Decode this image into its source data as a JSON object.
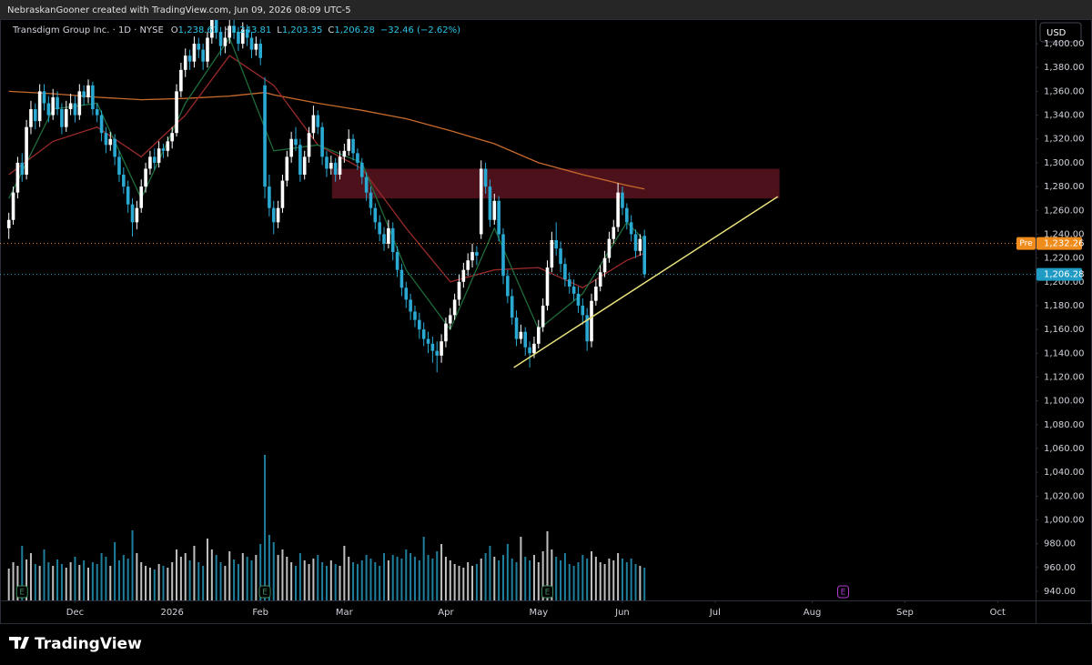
{
  "header": {
    "attribution": "NebraskanGooner created with TradingView.com, Jun 09, 2026 08:09 UTC-5"
  },
  "footer": {
    "brand": "TradingView"
  },
  "chart_data": {
    "type": "candlestick",
    "currency": "USD",
    "legend": {
      "name": "Transdigm Group Inc. · 1D · NYSE",
      "ohlc": [
        {
          "label": "O",
          "value": "1,238.61"
        },
        {
          "label": "H",
          "value": "1,243.81"
        },
        {
          "label": "L",
          "value": "1,203.35"
        },
        {
          "label": "C",
          "value": "1,206.28"
        }
      ],
      "change": "−32.46 (−2.62%)"
    },
    "up_color": "#ffffff",
    "down_color": "#2aa9d2",
    "xlim": [
      -2,
      232.6
    ],
    "xticks": [
      {
        "value": 15,
        "label": "Dec"
      },
      {
        "value": 37,
        "label": "2026"
      },
      {
        "value": 57,
        "label": "Feb"
      },
      {
        "value": 76,
        "label": "Mar"
      },
      {
        "value": 99,
        "label": "Apr"
      },
      {
        "value": 120,
        "label": "May"
      },
      {
        "value": 139,
        "label": "Jun"
      },
      {
        "value": 160,
        "label": "Jul"
      },
      {
        "value": 182,
        "label": "Aug"
      },
      {
        "value": 203,
        "label": "Sep"
      },
      {
        "value": 224,
        "label": "Oct"
      }
    ],
    "ylim": [
      932.4,
      1419.9
    ],
    "yticks": [
      {
        "value": 940,
        "label": "940.00"
      },
      {
        "value": 960,
        "label": "960.00"
      },
      {
        "value": 980,
        "label": "980.00"
      },
      {
        "value": 1000,
        "label": "1,000.00"
      },
      {
        "value": 1020,
        "label": "1,020.00"
      },
      {
        "value": 1040,
        "label": "1,040.00"
      },
      {
        "value": 1060,
        "label": "1,060.00"
      },
      {
        "value": 1080,
        "label": "1,080.00"
      },
      {
        "value": 1100,
        "label": "1,100.00"
      },
      {
        "value": 1120,
        "label": "1,120.00"
      },
      {
        "value": 1140,
        "label": "1,140.00"
      },
      {
        "value": 1160,
        "label": "1,160.00"
      },
      {
        "value": 1180,
        "label": "1,180.00"
      },
      {
        "value": 1200,
        "label": "1,200.00"
      },
      {
        "value": 1220,
        "label": "1,220.00"
      },
      {
        "value": 1240,
        "label": "1,240.00"
      },
      {
        "value": 1260,
        "label": "1,260.00"
      },
      {
        "value": 1280,
        "label": "1,280.00"
      },
      {
        "value": 1300,
        "label": "1,300.00"
      },
      {
        "value": 1320,
        "label": "1,320.00"
      },
      {
        "value": 1340,
        "label": "1,340.00"
      },
      {
        "value": 1360,
        "label": "1,360.00"
      },
      {
        "value": 1380,
        "label": "1,380.00"
      },
      {
        "value": 1400,
        "label": "1,400.00"
      }
    ],
    "x": [
      0,
      1,
      2,
      3,
      4,
      5,
      6,
      7,
      8,
      9,
      10,
      11,
      12,
      13,
      14,
      15,
      16,
      17,
      18,
      19,
      20,
      21,
      22,
      23,
      24,
      25,
      26,
      27,
      28,
      29,
      30,
      31,
      32,
      33,
      34,
      35,
      36,
      37,
      38,
      39,
      40,
      41,
      42,
      43,
      44,
      45,
      46,
      47,
      48,
      49,
      50,
      51,
      52,
      53,
      54,
      55,
      56,
      57,
      58,
      59,
      60,
      61,
      62,
      63,
      64,
      65,
      66,
      67,
      68,
      69,
      70,
      71,
      72,
      73,
      74,
      75,
      76,
      77,
      78,
      79,
      80,
      81,
      82,
      83,
      84,
      85,
      86,
      87,
      88,
      89,
      90,
      91,
      92,
      93,
      94,
      95,
      96,
      97,
      98,
      99,
      100,
      101,
      102,
      103,
      104,
      105,
      106,
      107,
      108,
      109,
      110,
      111,
      112,
      113,
      114,
      115,
      116,
      117,
      118,
      119,
      120,
      121,
      122,
      123,
      124,
      125,
      126,
      127,
      128,
      129,
      130,
      131,
      132,
      133,
      134,
      135,
      136,
      137,
      138,
      139,
      140,
      141,
      142,
      143,
      144
    ],
    "candles": [
      [
        1245,
        1258,
        1236,
        1252
      ],
      [
        1252,
        1280,
        1248,
        1275
      ],
      [
        1275,
        1305,
        1270,
        1300
      ],
      [
        1300,
        1308,
        1284,
        1290
      ],
      [
        1290,
        1336,
        1286,
        1330
      ],
      [
        1330,
        1352,
        1324,
        1345
      ],
      [
        1345,
        1350,
        1328,
        1335
      ],
      [
        1335,
        1366,
        1330,
        1360
      ],
      [
        1360,
        1366,
        1344,
        1350
      ],
      [
        1350,
        1356,
        1334,
        1340
      ],
      [
        1340,
        1362,
        1336,
        1355
      ],
      [
        1355,
        1360,
        1340,
        1345
      ],
      [
        1345,
        1350,
        1324,
        1330
      ],
      [
        1330,
        1352,
        1326,
        1345
      ],
      [
        1345,
        1358,
        1340,
        1350
      ],
      [
        1350,
        1356,
        1334,
        1340
      ],
      [
        1340,
        1366,
        1336,
        1360
      ],
      [
        1360,
        1365,
        1348,
        1355
      ],
      [
        1355,
        1370,
        1350,
        1365
      ],
      [
        1365,
        1368,
        1340,
        1345
      ],
      [
        1345,
        1350,
        1334,
        1340
      ],
      [
        1340,
        1344,
        1318,
        1325
      ],
      [
        1325,
        1330,
        1308,
        1315
      ],
      [
        1315,
        1326,
        1310,
        1320
      ],
      [
        1320,
        1324,
        1298,
        1305
      ],
      [
        1305,
        1310,
        1284,
        1290
      ],
      [
        1290,
        1296,
        1274,
        1280
      ],
      [
        1280,
        1285,
        1258,
        1265
      ],
      [
        1265,
        1270,
        1238,
        1250
      ],
      [
        1250,
        1268,
        1244,
        1262
      ],
      [
        1262,
        1286,
        1258,
        1280
      ],
      [
        1280,
        1300,
        1275,
        1295
      ],
      [
        1295,
        1310,
        1290,
        1305
      ],
      [
        1305,
        1312,
        1294,
        1300
      ],
      [
        1300,
        1318,
        1296,
        1312
      ],
      [
        1312,
        1316,
        1304,
        1310
      ],
      [
        1310,
        1322,
        1305,
        1318
      ],
      [
        1318,
        1330,
        1312,
        1325
      ],
      [
        1325,
        1366,
        1322,
        1360
      ],
      [
        1360,
        1384,
        1355,
        1378
      ],
      [
        1378,
        1396,
        1372,
        1390
      ],
      [
        1390,
        1395,
        1378,
        1385
      ],
      [
        1385,
        1406,
        1380,
        1400
      ],
      [
        1400,
        1405,
        1388,
        1395
      ],
      [
        1395,
        1400,
        1378,
        1385
      ],
      [
        1385,
        1410,
        1380,
        1405
      ],
      [
        1405,
        1428,
        1400,
        1420
      ],
      [
        1420,
        1425,
        1404,
        1410
      ],
      [
        1410,
        1414,
        1390,
        1398
      ],
      [
        1398,
        1410,
        1392,
        1405
      ],
      [
        1405,
        1420,
        1400,
        1415
      ],
      [
        1415,
        1420,
        1404,
        1410
      ],
      [
        1410,
        1414,
        1394,
        1400
      ],
      [
        1400,
        1418,
        1396,
        1412
      ],
      [
        1412,
        1416,
        1398,
        1405
      ],
      [
        1405,
        1410,
        1388,
        1395
      ],
      [
        1395,
        1406,
        1390,
        1400
      ],
      [
        1400,
        1404,
        1382,
        1388
      ],
      [
        1365,
        1372,
        1270,
        1280
      ],
      [
        1280,
        1290,
        1255,
        1262
      ],
      [
        1262,
        1268,
        1240,
        1250
      ],
      [
        1250,
        1268,
        1245,
        1262
      ],
      [
        1262,
        1290,
        1258,
        1285
      ],
      [
        1285,
        1310,
        1280,
        1305
      ],
      [
        1305,
        1326,
        1300,
        1320
      ],
      [
        1320,
        1330,
        1310,
        1315
      ],
      [
        1315,
        1320,
        1284,
        1290
      ],
      [
        1290,
        1310,
        1286,
        1305
      ],
      [
        1305,
        1330,
        1300,
        1325
      ],
      [
        1325,
        1348,
        1320,
        1340
      ],
      [
        1340,
        1344,
        1324,
        1330
      ],
      [
        1330,
        1334,
        1298,
        1305
      ],
      [
        1305,
        1310,
        1288,
        1295
      ],
      [
        1295,
        1306,
        1290,
        1300
      ],
      [
        1300,
        1304,
        1284,
        1290
      ],
      [
        1290,
        1310,
        1286,
        1305
      ],
      [
        1305,
        1316,
        1300,
        1310
      ],
      [
        1310,
        1328,
        1306,
        1320
      ],
      [
        1320,
        1324,
        1302,
        1308
      ],
      [
        1308,
        1312,
        1294,
        1300
      ],
      [
        1300,
        1304,
        1282,
        1288
      ],
      [
        1288,
        1292,
        1268,
        1275
      ],
      [
        1275,
        1280,
        1256,
        1262
      ],
      [
        1262,
        1266,
        1244,
        1250
      ],
      [
        1250,
        1256,
        1234,
        1240
      ],
      [
        1240,
        1246,
        1226,
        1232
      ],
      [
        1232,
        1252,
        1228,
        1245
      ],
      [
        1245,
        1250,
        1218,
        1225
      ],
      [
        1225,
        1230,
        1204,
        1210
      ],
      [
        1210,
        1215,
        1188,
        1195
      ],
      [
        1195,
        1200,
        1178,
        1185
      ],
      [
        1185,
        1190,
        1168,
        1175
      ],
      [
        1175,
        1180,
        1162,
        1168
      ],
      [
        1168,
        1174,
        1152,
        1160
      ],
      [
        1160,
        1166,
        1146,
        1152
      ],
      [
        1152,
        1158,
        1140,
        1148
      ],
      [
        1148,
        1154,
        1132,
        1142
      ],
      [
        1142,
        1150,
        1124,
        1138
      ],
      [
        1138,
        1156,
        1132,
        1150
      ],
      [
        1150,
        1170,
        1145,
        1165
      ],
      [
        1165,
        1178,
        1160,
        1172
      ],
      [
        1172,
        1190,
        1168,
        1185
      ],
      [
        1185,
        1206,
        1180,
        1200
      ],
      [
        1200,
        1216,
        1195,
        1210
      ],
      [
        1210,
        1224,
        1205,
        1218
      ],
      [
        1218,
        1232,
        1212,
        1225
      ],
      [
        1225,
        1230,
        1214,
        1222
      ],
      [
        1240,
        1302,
        1236,
        1295
      ],
      [
        1295,
        1300,
        1274,
        1280
      ],
      [
        1280,
        1286,
        1246,
        1252
      ],
      [
        1252,
        1274,
        1248,
        1268
      ],
      [
        1268,
        1272,
        1234,
        1240
      ],
      [
        1240,
        1245,
        1198,
        1205
      ],
      [
        1205,
        1210,
        1182,
        1188
      ],
      [
        1188,
        1194,
        1164,
        1170
      ],
      [
        1170,
        1176,
        1146,
        1152
      ],
      [
        1152,
        1164,
        1148,
        1158
      ],
      [
        1158,
        1162,
        1138,
        1145
      ],
      [
        1145,
        1150,
        1128,
        1140
      ],
      [
        1140,
        1154,
        1136,
        1148
      ],
      [
        1148,
        1168,
        1144,
        1162
      ],
      [
        1162,
        1186,
        1158,
        1180
      ],
      [
        1180,
        1218,
        1176,
        1212
      ],
      [
        1212,
        1242,
        1208,
        1235
      ],
      [
        1235,
        1250,
        1222,
        1228
      ],
      [
        1228,
        1234,
        1208,
        1215
      ],
      [
        1215,
        1220,
        1196,
        1202
      ],
      [
        1202,
        1208,
        1190,
        1196
      ],
      [
        1196,
        1202,
        1184,
        1190
      ],
      [
        1190,
        1196,
        1174,
        1180
      ],
      [
        1180,
        1186,
        1164,
        1172
      ],
      [
        1172,
        1178,
        1142,
        1150
      ],
      [
        1150,
        1190,
        1145,
        1184
      ],
      [
        1184,
        1202,
        1180,
        1196
      ],
      [
        1196,
        1214,
        1192,
        1208
      ],
      [
        1208,
        1226,
        1204,
        1220
      ],
      [
        1220,
        1242,
        1216,
        1236
      ],
      [
        1236,
        1252,
        1232,
        1246
      ],
      [
        1246,
        1283,
        1242,
        1275
      ],
      [
        1275,
        1280,
        1256,
        1262
      ],
      [
        1262,
        1266,
        1244,
        1250
      ],
      [
        1250,
        1256,
        1234,
        1240
      ],
      [
        1240,
        1244,
        1220,
        1226
      ],
      [
        1226,
        1240,
        1222,
        1236
      ],
      [
        1238.61,
        1243.81,
        1203.35,
        1206.28
      ]
    ],
    "volume_lim": [
      0,
      1600000
    ],
    "volume": [
      350000,
      420000,
      380000,
      600000,
      450000,
      520000,
      400000,
      380000,
      560000,
      420000,
      380000,
      450000,
      400000,
      360000,
      420000,
      480000,
      390000,
      440000,
      360000,
      420000,
      400000,
      520000,
      480000,
      380000,
      640000,
      440000,
      500000,
      460000,
      770000,
      520000,
      420000,
      380000,
      360000,
      340000,
      400000,
      380000,
      360000,
      420000,
      560000,
      480000,
      520000,
      440000,
      600000,
      420000,
      380000,
      680000,
      560000,
      500000,
      420000,
      380000,
      540000,
      450000,
      400000,
      520000,
      480000,
      440000,
      500000,
      620000,
      1600000,
      720000,
      640000,
      500000,
      560000,
      480000,
      420000,
      380000,
      520000,
      440000,
      400000,
      460000,
      500000,
      420000,
      380000,
      440000,
      400000,
      380000,
      600000,
      480000,
      420000,
      400000,
      440000,
      500000,
      460000,
      420000,
      380000,
      520000,
      440000,
      500000,
      480000,
      460000,
      560000,
      520000,
      480000,
      440000,
      700000,
      500000,
      460000,
      540000,
      620000,
      480000,
      440000,
      400000,
      380000,
      360000,
      420000,
      380000,
      400000,
      460000,
      520000,
      600000,
      480000,
      440000,
      500000,
      620000,
      460000,
      420000,
      700000,
      480000,
      440000,
      500000,
      420000,
      540000,
      760000,
      560000,
      480000,
      440000,
      520000,
      400000,
      380000,
      420000,
      500000,
      460000,
      540000,
      480000,
      420000,
      400000,
      460000,
      440000,
      520000,
      460000,
      420000,
      460000,
      400000,
      380000,
      360000
    ],
    "lines": [
      {
        "color": "#c86a2c",
        "x": [
          0,
          10,
          20,
          30,
          40,
          50,
          58,
          60,
          70,
          80,
          90,
          100,
          110,
          120,
          130,
          140,
          144
        ],
        "values": [
          1360,
          1358,
          1355,
          1353,
          1354,
          1356,
          1359,
          1357,
          1350,
          1344,
          1337,
          1327,
          1316,
          1300,
          1290,
          1281,
          1278
        ]
      },
      {
        "color": "#9c2a2a",
        "x": [
          0,
          10,
          20,
          30,
          40,
          50,
          60,
          70,
          80,
          90,
          100,
          110,
          120,
          130,
          140,
          144
        ],
        "values": [
          1290,
          1318,
          1330,
          1305,
          1340,
          1390,
          1365,
          1315,
          1295,
          1245,
          1200,
          1210,
          1212,
          1195,
          1218,
          1224
        ]
      },
      {
        "color": "#1e6b3c",
        "x": [
          0,
          10,
          20,
          30,
          40,
          50,
          60,
          70,
          80,
          90,
          100,
          110,
          120,
          130,
          140,
          144
        ],
        "values": [
          1270,
          1345,
          1350,
          1270,
          1350,
          1405,
          1310,
          1315,
          1300,
          1210,
          1160,
          1245,
          1160,
          1190,
          1250,
          1235
        ]
      }
    ],
    "zone": {
      "x": [
        73.2,
        174.6
      ],
      "y": [
        1270,
        1295
      ],
      "color": "#5a1420"
    },
    "trendline": {
      "x": [
        114.4,
        174.2
      ],
      "y": [
        1128,
        1271.6
      ],
      "color": "#e8e07a"
    },
    "price_lines": [
      {
        "label": "Pre",
        "value": 1232.26,
        "value_label": "1,232.26",
        "color": "#f08c1c"
      },
      {
        "value": 1206.28,
        "value_label": "1,206.28",
        "color": "#1f9bc4"
      }
    ],
    "earnings": [
      {
        "x": 3,
        "label": "E",
        "color": "#3e8a5c"
      },
      {
        "x": 58,
        "label": "E",
        "color": "#3e8a5c"
      },
      {
        "x": 122,
        "label": "E",
        "color": "#3e8a5c"
      },
      {
        "x": 189,
        "label": "E",
        "color": "#b13ad0"
      }
    ]
  }
}
